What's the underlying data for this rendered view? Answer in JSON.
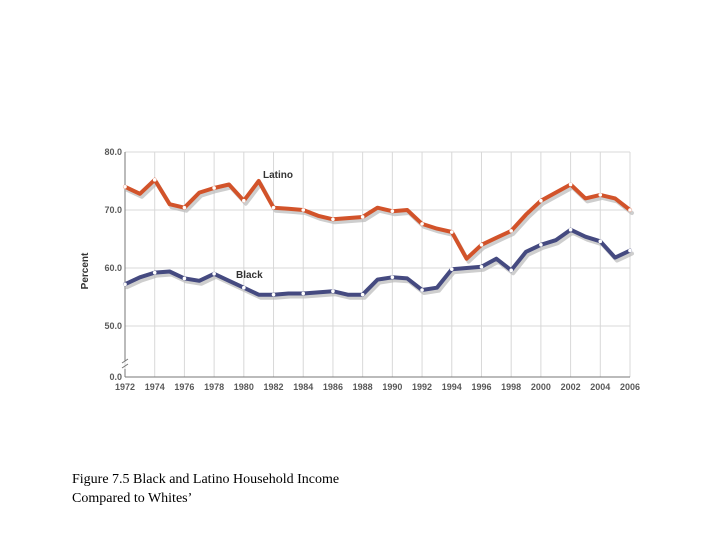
{
  "caption": {
    "line1": "Figure 7.5 Black and Latino Household Income",
    "line2": "Compared to Whites’"
  },
  "chart_data": {
    "type": "line",
    "title": "",
    "xlabel": "",
    "ylabel": "Percent",
    "x": [
      1972,
      1973,
      1974,
      1975,
      1976,
      1977,
      1978,
      1979,
      1980,
      1981,
      1982,
      1983,
      1984,
      1985,
      1986,
      1987,
      1988,
      1989,
      1990,
      1991,
      1992,
      1993,
      1994,
      1995,
      1996,
      1997,
      1998,
      1999,
      2000,
      2001,
      2002,
      2003,
      2004,
      2005,
      2006
    ],
    "x_tick_labels": [
      "1972",
      "1974",
      "1976",
      "1978",
      "1980",
      "1982",
      "1984",
      "1986",
      "1988",
      "1990",
      "1992",
      "1994",
      "1996",
      "1998",
      "2000",
      "2002",
      "2004",
      "2006"
    ],
    "y_tick_labels": [
      "80.0",
      "70.0",
      "60.0",
      "50.0",
      "0.0"
    ],
    "y_axis_break": "0.0 to 45.0",
    "ylim": [
      45,
      80
    ],
    "grid": true,
    "series": [
      {
        "name": "Latino",
        "color": "#d2532a",
        "values": [
          74.0,
          72.8,
          75.2,
          71.0,
          70.4,
          73.0,
          73.8,
          74.4,
          71.6,
          75.0,
          70.4,
          70.2,
          70.0,
          69.0,
          68.4,
          68.6,
          68.8,
          70.4,
          69.8,
          70.0,
          67.6,
          66.8,
          66.2,
          61.6,
          64.0,
          65.2,
          66.4,
          69.2,
          71.6,
          73.0,
          74.4,
          72.0,
          72.6,
          72.0,
          70.0
        ]
      },
      {
        "name": "Black",
        "color": "#454a80",
        "values": [
          57.2,
          58.4,
          59.2,
          59.4,
          58.2,
          57.8,
          59.0,
          57.8,
          56.6,
          55.4,
          55.4,
          55.6,
          55.6,
          55.8,
          56.0,
          55.4,
          55.4,
          58.0,
          58.4,
          58.2,
          56.2,
          56.6,
          59.8,
          60.0,
          60.2,
          61.6,
          59.6,
          62.8,
          64.0,
          64.8,
          66.6,
          65.4,
          64.6,
          61.8,
          63.0
        ]
      }
    ]
  }
}
